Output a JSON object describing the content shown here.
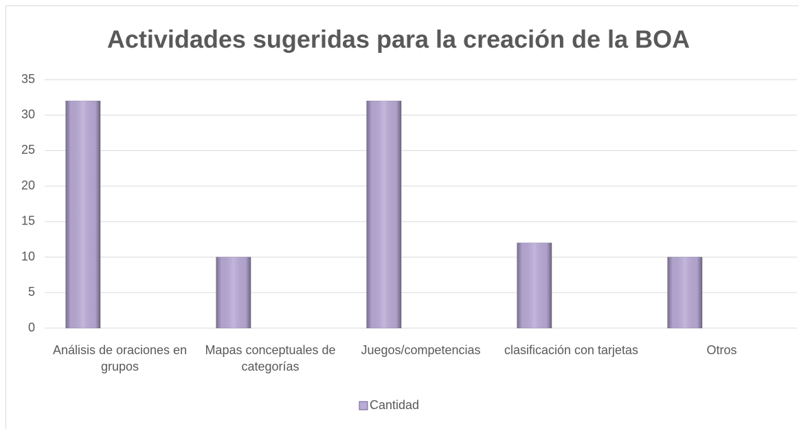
{
  "chart_data": {
    "type": "bar",
    "title": "Actividades sugeridas para la creación de la BOA",
    "categories": [
      "Análisis de oraciones en grupos",
      "Mapas conceptuales de categorías",
      "Juegos/competencias",
      "clasificación con tarjetas",
      "Otros"
    ],
    "series": [
      {
        "name": "Cantidad",
        "color": "#b9aad6",
        "values": [
          32,
          10,
          32,
          12,
          10
        ]
      }
    ],
    "ylim": [
      0,
      35
    ],
    "yticks": [
      0,
      5,
      10,
      15,
      20,
      25,
      30,
      35
    ],
    "grid": true,
    "legend": "bottom"
  }
}
